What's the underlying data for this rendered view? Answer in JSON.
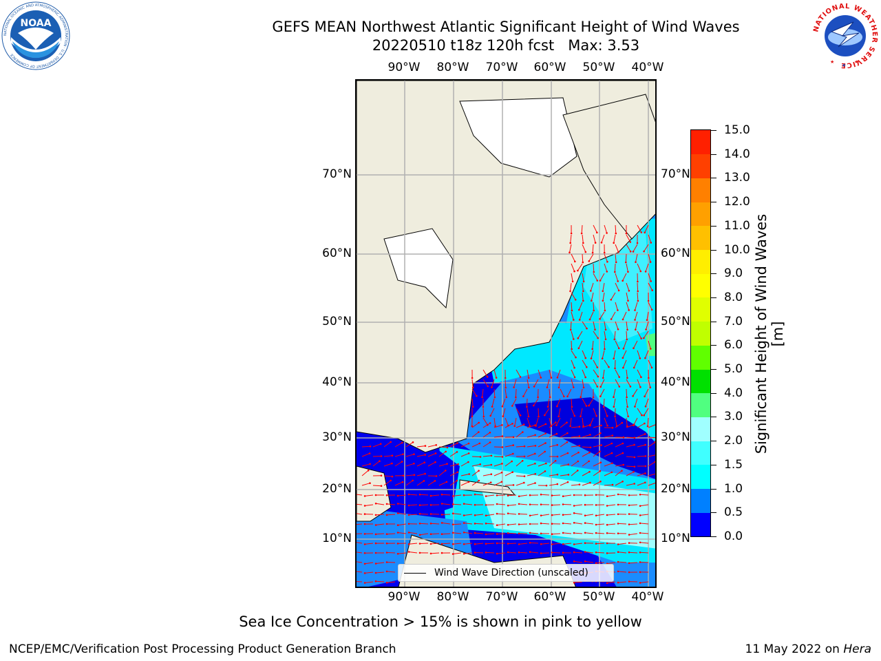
{
  "title": {
    "line1": "GEFS MEAN Northwest Atlantic Significant Height of Wind Waves",
    "line2": "20220510 t18z 120h fcst   Max: 3.53"
  },
  "logos": {
    "left": "noaa-logo",
    "left_text": "NOAA",
    "left_ring_text": "NATIONAL OCEANIC AND ATMOSPHERIC ADMINISTRATION · U.S. DEPARTMENT OF COMMERCE",
    "right": "nws-logo",
    "right_ring_text": "NATIONAL WEATHER SERVICE"
  },
  "map": {
    "lon_labels": [
      "90°W",
      "80°W",
      "70°W",
      "60°W",
      "50°W",
      "40°W"
    ],
    "lat_labels": [
      "70°N",
      "60°N",
      "50°N",
      "40°N",
      "30°N",
      "20°N",
      "10°N"
    ],
    "legend": "Wind Wave Direction (unscaled)",
    "colors": {
      "land": "#efedde",
      "ice_land": "#ffffff",
      "arrow": "#ff0000",
      "grid": "#b0b0b0"
    }
  },
  "colorbar": {
    "title": "Significant Height of Wind Waves [m]",
    "levels": [
      "0.0",
      "0.5",
      "1.0",
      "1.5",
      "2.0",
      "3.0",
      "4.0",
      "5.0",
      "6.0",
      "7.0",
      "8.0",
      "9.0",
      "10.0",
      "11.0",
      "12.0",
      "13.0",
      "14.0",
      "15.0"
    ],
    "colors": [
      "#0000ff",
      "#0080ff",
      "#00ffff",
      "#40ffff",
      "#a0ffff",
      "#50ff80",
      "#00e000",
      "#60ff00",
      "#c0ff00",
      "#e0ff00",
      "#ffff00",
      "#ffee00",
      "#ffc000",
      "#ffa000",
      "#ff8000",
      "#ff4000",
      "#ff2000"
    ]
  },
  "note": "Sea Ice Concentration > 15% is shown in pink to yellow",
  "footer": {
    "left": "NCEP/EMC/Verification Post Processing Product Generation Branch",
    "right_prefix": "11 May 2022 on ",
    "right_host": "Hera"
  }
}
